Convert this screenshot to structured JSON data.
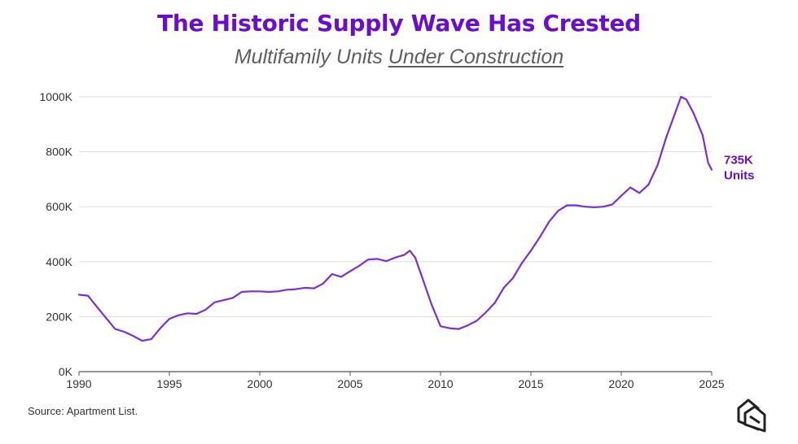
{
  "header": {
    "title": "The Historic Supply Wave Has Crested",
    "subtitle_prefix": "Multifamily Units ",
    "subtitle_underlined": "Under Construction"
  },
  "footer": {
    "source": "Source: Apartment List."
  },
  "brand": {
    "logo_icon": "apartment-list-logo-icon"
  },
  "colors": {
    "line": "#7b2fd6",
    "title": "#6a0dcc",
    "grid": "#dddddd",
    "axis": "#555555"
  },
  "chart_data": {
    "type": "line",
    "title": "The Historic Supply Wave Has Crested",
    "subtitle": "Multifamily Units Under Construction",
    "xlabel": "",
    "ylabel": "",
    "xlim": [
      1990,
      2025
    ],
    "ylim": [
      0,
      1000000
    ],
    "grid": true,
    "x_ticks": [
      1990,
      1995,
      2000,
      2005,
      2010,
      2015,
      2020,
      2025
    ],
    "x_tick_labels": [
      "1990",
      "1995",
      "2000",
      "2005",
      "2010",
      "2015",
      "2020",
      "2025"
    ],
    "y_ticks": [
      0,
      200000,
      400000,
      600000,
      800000,
      1000000
    ],
    "y_tick_labels": [
      "0K",
      "200K",
      "400K",
      "600K",
      "800K",
      "1000K"
    ],
    "end_label_lines": [
      "735K",
      "Units"
    ],
    "series": [
      {
        "name": "Multifamily Units Under Construction",
        "x": [
          1990.0,
          1990.5,
          1991.0,
          1991.5,
          1992.0,
          1992.5,
          1993.0,
          1993.5,
          1994.0,
          1994.5,
          1995.0,
          1995.5,
          1996.0,
          1996.5,
          1997.0,
          1997.5,
          1998.0,
          1998.5,
          1999.0,
          1999.5,
          2000.0,
          2000.5,
          2001.0,
          2001.5,
          2002.0,
          2002.5,
          2003.0,
          2003.5,
          2004.0,
          2004.5,
          2005.0,
          2005.5,
          2006.0,
          2006.5,
          2007.0,
          2007.5,
          2008.0,
          2008.3,
          2008.6,
          2009.0,
          2009.5,
          2010.0,
          2010.5,
          2011.0,
          2011.5,
          2012.0,
          2012.5,
          2013.0,
          2013.5,
          2014.0,
          2014.5,
          2015.0,
          2015.5,
          2016.0,
          2016.5,
          2017.0,
          2017.5,
          2018.0,
          2018.5,
          2019.0,
          2019.5,
          2020.0,
          2020.5,
          2021.0,
          2021.5,
          2022.0,
          2022.5,
          2023.0,
          2023.3,
          2023.6,
          2024.0,
          2024.5,
          2024.8,
          2025.0
        ],
        "values": [
          280000,
          276000,
          235000,
          195000,
          155000,
          145000,
          130000,
          112000,
          118000,
          158000,
          192000,
          205000,
          212000,
          210000,
          225000,
          252000,
          260000,
          268000,
          290000,
          292000,
          292000,
          290000,
          292000,
          298000,
          300000,
          305000,
          303000,
          320000,
          355000,
          345000,
          365000,
          385000,
          408000,
          410000,
          402000,
          415000,
          425000,
          440000,
          415000,
          340000,
          245000,
          165000,
          158000,
          155000,
          168000,
          185000,
          215000,
          250000,
          305000,
          340000,
          395000,
          440000,
          490000,
          545000,
          585000,
          605000,
          605000,
          600000,
          598000,
          600000,
          608000,
          640000,
          670000,
          650000,
          680000,
          750000,
          855000,
          945000,
          1000000,
          990000,
          940000,
          860000,
          760000,
          735000
        ]
      }
    ]
  }
}
